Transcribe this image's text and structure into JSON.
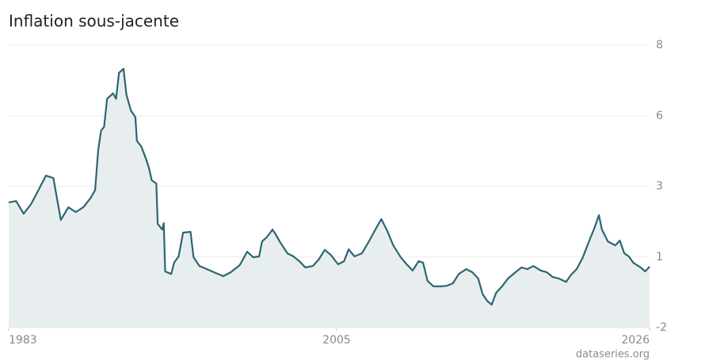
{
  "chart_data": {
    "type": "area",
    "title": "Inflation sous-jacente",
    "source": "dataseries.org",
    "color": "#2c6672",
    "fill": "#e8eef0",
    "grid": true,
    "xlim": [
      1983,
      2026
    ],
    "xticks": [
      1983,
      2005,
      2026
    ],
    "ylim": [
      -2,
      8
    ],
    "yticks": [
      -2,
      {
        "value": 0.5,
        "label": "1"
      },
      3,
      {
        "value": 5.5,
        "label": "6"
      },
      8
    ],
    "x": [
      1983.0,
      1983.5,
      1984.0,
      1984.5,
      1985.0,
      1985.5,
      1986.0,
      1986.5,
      1987.0,
      1987.5,
      1988.0,
      1988.5,
      1988.8,
      1989.0,
      1989.2,
      1989.4,
      1989.6,
      1990.0,
      1990.2,
      1990.4,
      1990.7,
      1990.9,
      1991.2,
      1991.5,
      1991.6,
      1991.9,
      1992.2,
      1992.4,
      1992.6,
      1992.9,
      1993.0,
      1993.3,
      1993.4,
      1993.5,
      1993.9,
      1994.1,
      1994.4,
      1994.7,
      1995.2,
      1995.4,
      1995.8,
      1996.3,
      1996.9,
      1997.4,
      1997.9,
      1998.5,
      1999.0,
      1999.4,
      1999.8,
      2000.0,
      2000.3,
      2000.7,
      2000.9,
      2001.2,
      2001.7,
      2002.1,
      2002.5,
      2002.9,
      2003.4,
      2003.8,
      2004.2,
      2004.6,
      2005.1,
      2005.5,
      2005.8,
      2006.2,
      2006.7,
      2007.2,
      2007.6,
      2008.0,
      2008.4,
      2008.8,
      2009.3,
      2009.7,
      2010.1,
      2010.5,
      2010.8,
      2011.1,
      2011.5,
      2012.0,
      2012.4,
      2012.8,
      2013.2,
      2013.7,
      2014.1,
      2014.5,
      2014.8,
      2015.1,
      2015.4,
      2015.7,
      2016.1,
      2016.5,
      2017.0,
      2017.4,
      2017.8,
      2018.2,
      2018.7,
      2019.1,
      2019.5,
      2019.9,
      2020.4,
      2020.7,
      2021.1,
      2021.5,
      2022.0,
      2022.3,
      2022.6,
      2022.8,
      2023.2,
      2023.7,
      2024.0,
      2024.3,
      2024.6,
      2024.9,
      2025.4,
      2025.7,
      2026.0
    ],
    "values": [
      2.43,
      2.48,
      2.03,
      2.37,
      2.87,
      3.38,
      3.29,
      1.81,
      2.26,
      2.09,
      2.26,
      2.59,
      2.87,
      4.27,
      4.97,
      5.11,
      6.1,
      6.29,
      6.1,
      7.02,
      7.16,
      6.24,
      5.68,
      5.45,
      4.61,
      4.41,
      3.99,
      3.66,
      3.21,
      3.1,
      1.67,
      1.47,
      1.7,
      -0.01,
      -0.1,
      0.3,
      0.52,
      1.36,
      1.39,
      0.49,
      0.18,
      0.07,
      -0.07,
      -0.18,
      -0.04,
      0.21,
      0.69,
      0.49,
      0.52,
      1.05,
      1.19,
      1.47,
      1.31,
      1.03,
      0.63,
      0.52,
      0.35,
      0.13,
      0.18,
      0.41,
      0.75,
      0.58,
      0.24,
      0.35,
      0.77,
      0.52,
      0.63,
      1.08,
      1.47,
      1.84,
      1.42,
      0.91,
      0.49,
      0.24,
      0.02,
      0.35,
      0.3,
      -0.35,
      -0.54,
      -0.54,
      -0.52,
      -0.43,
      -0.1,
      0.07,
      -0.04,
      -0.26,
      -0.82,
      -1.05,
      -1.19,
      -0.77,
      -0.54,
      -0.26,
      -0.04,
      0.13,
      0.07,
      0.18,
      0.02,
      -0.04,
      -0.21,
      -0.26,
      -0.38,
      -0.15,
      0.07,
      0.46,
      1.14,
      1.53,
      1.98,
      1.47,
      1.05,
      0.91,
      1.08,
      0.63,
      0.52,
      0.3,
      0.13,
      -0.01,
      0.16
    ]
  }
}
